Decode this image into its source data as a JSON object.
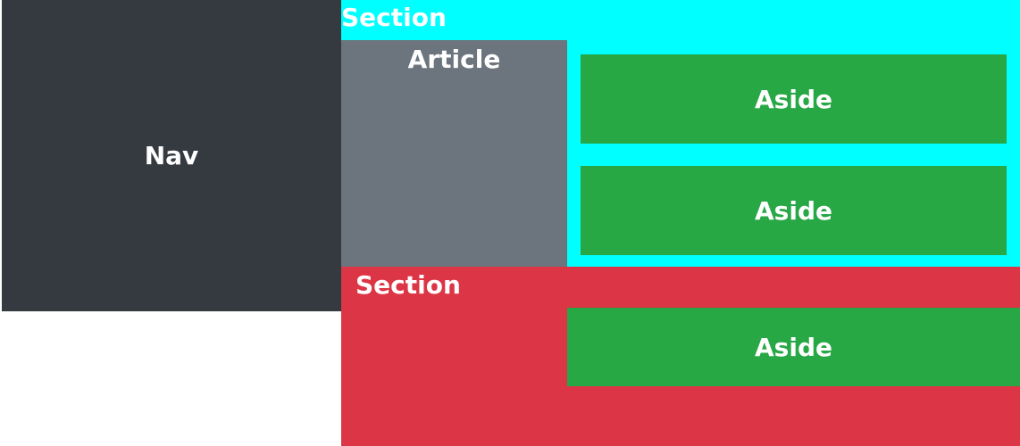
{
  "colors": {
    "nav_bg": "#343a40",
    "section_top_bg": "#00ffff",
    "article_bg": "#6c757d",
    "aside_bg": "#28a745",
    "section_bottom_bg": "#dc3545",
    "text": "#ffffff"
  },
  "nav": {
    "label": "Nav"
  },
  "section_top": {
    "label": "Section",
    "article": {
      "label": "Article"
    },
    "asides": [
      {
        "label": "Aside"
      },
      {
        "label": "Aside"
      }
    ]
  },
  "section_bottom": {
    "label": "Section",
    "aside": {
      "label": "Aside"
    }
  }
}
